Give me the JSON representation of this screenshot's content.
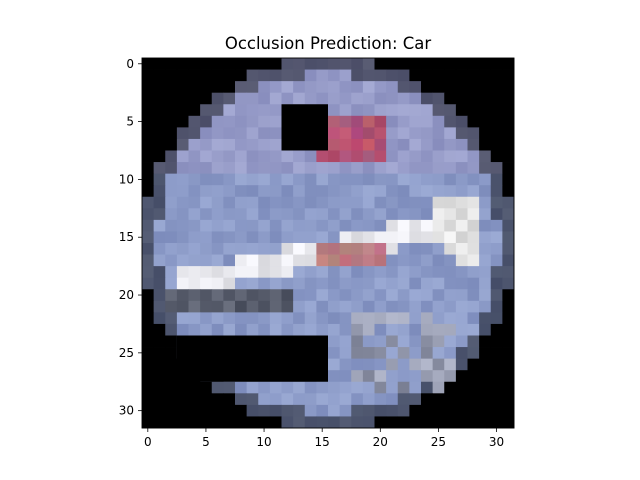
{
  "title": "Occlusion Prediction: Car",
  "image": {
    "grid_size": 32,
    "description_shown": "pixelated circular image of an airplane on blue sky with two black occlusion patches",
    "occlusion_patches": [
      {
        "row_start": 4,
        "row_end": 7,
        "col_start": 12,
        "col_end": 15
      },
      {
        "row_start": 24,
        "row_end": 27,
        "col_start": 3,
        "col_end": 15
      }
    ]
  },
  "x_axis": {
    "ticks": [
      0,
      5,
      10,
      15,
      20,
      25,
      30
    ],
    "range": [
      -0.5,
      31.5
    ]
  },
  "y_axis": {
    "ticks": [
      0,
      5,
      10,
      15,
      20,
      25,
      30
    ],
    "range": [
      31.5,
      -0.5
    ]
  }
}
